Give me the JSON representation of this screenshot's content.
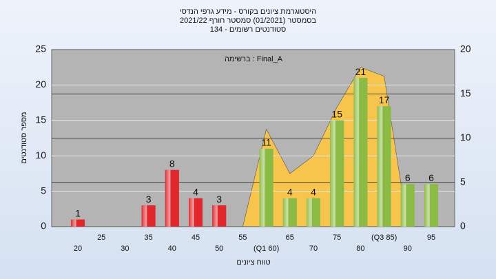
{
  "chart_data": {
    "type": "bar",
    "title": [
      "היסטוגרמת ציונים בקורס - מידע גרפי הנדסי",
      "בסמסטר  (01/2021)  סמסטר חורף  2021/22",
      "סטודנטים רשומים - 134"
    ],
    "annotation": "ברשימה : Final_A",
    "ylabel": "מספר סטודנטים",
    "xlabel": "טווח ציונים",
    "categories": [
      "20",
      "25",
      "30",
      "35",
      "40",
      "45",
      "50",
      "55",
      "(Q1 60)",
      "65",
      "70",
      "75",
      "80",
      "(Q3 85)",
      "90",
      "95"
    ],
    "values": [
      1,
      0,
      0,
      3,
      8,
      4,
      3,
      0,
      11,
      4,
      4,
      15,
      21,
      17,
      6,
      6
    ],
    "value_labels": [
      "1",
      null,
      null,
      "3",
      "8",
      "4",
      "3",
      null,
      "11",
      "4",
      "4",
      "15",
      "21",
      "17",
      "6",
      "6"
    ],
    "colors": [
      "#e0282c",
      "#e0282c",
      "#e0282c",
      "#e0282c",
      "#e0282c",
      "#e0282c",
      "#e0282c",
      "#e0282c",
      "#8cbb45",
      "#8cbb45",
      "#8cbb45",
      "#8cbb45",
      "#8cbb45",
      "#8cbb45",
      "#8cbb45",
      "#8cbb45"
    ],
    "area": {
      "type": "area",
      "axis": "y2",
      "color": "#f7c44c",
      "x": [
        55,
        60,
        65,
        70,
        75,
        80,
        85,
        90
      ],
      "values": [
        0,
        11,
        6,
        8,
        13.5,
        18,
        17,
        0
      ]
    },
    "ylim": [
      0,
      25
    ],
    "yticks": [
      0,
      5,
      10,
      15,
      20,
      25
    ],
    "y2lim": [
      0,
      20
    ],
    "y2ticks": [
      0,
      5,
      10,
      15,
      20
    ],
    "grid": true
  }
}
